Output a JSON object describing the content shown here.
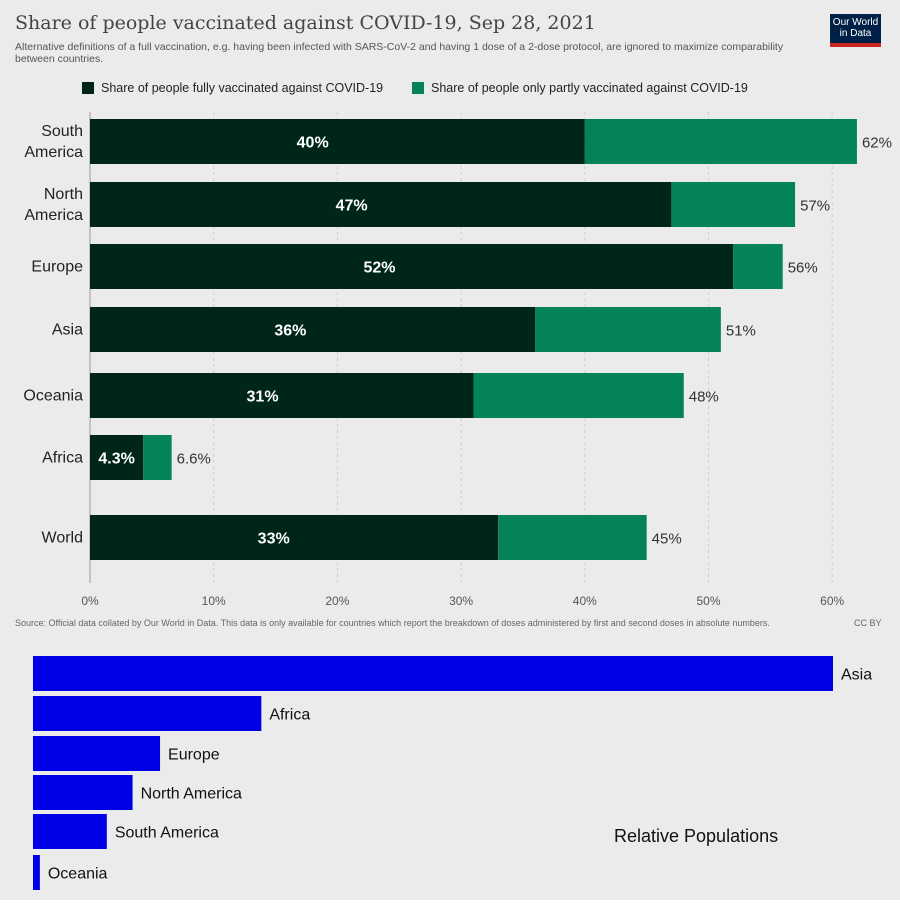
{
  "chart_data": [
    {
      "type": "bar",
      "orientation": "horizontal",
      "stacked": true,
      "title": "Share of people vaccinated against COVID-19, Sep 28, 2021",
      "subtitle": "Alternative definitions of a full vaccination, e.g. having been infected with SARS-CoV-2 and having 1 dose of a 2-dose protocol, are ignored to maximize comparability between countries.",
      "logo": "Our World in Data",
      "categories": [
        "South America",
        "North America",
        "Europe",
        "Asia",
        "Oceania",
        "Africa",
        "World"
      ],
      "category_lines": [
        [
          "South",
          "America"
        ],
        [
          "North",
          "America"
        ],
        [
          "Europe"
        ],
        [
          "Asia"
        ],
        [
          "Oceania"
        ],
        [
          "Africa"
        ],
        [
          "World"
        ]
      ],
      "series": [
        {
          "name": "Share of people fully vaccinated against COVID-19",
          "color": "#00261a",
          "values": [
            40,
            47,
            52,
            36,
            31,
            4.3,
            33
          ],
          "labels": [
            "40%",
            "47%",
            "52%",
            "36%",
            "31%",
            "4.3%",
            "33%"
          ]
        },
        {
          "name": "Share of people only partly vaccinated against COVID-19",
          "color": "#048358",
          "values": [
            22,
            10,
            4,
            15,
            17,
            2.3,
            12
          ]
        }
      ],
      "total_labels": [
        "62%",
        "57%",
        "56%",
        "51%",
        "48%",
        "6.6%",
        "45%"
      ],
      "totals": [
        62,
        57,
        56,
        51,
        48,
        6.6,
        45
      ],
      "xlim": [
        0,
        65
      ],
      "xticks": [
        0,
        10,
        20,
        30,
        40,
        50,
        60
      ],
      "xtick_labels": [
        "0%",
        "10%",
        "20%",
        "30%",
        "40%",
        "50%",
        "60%"
      ],
      "grid": true,
      "legend_position": "top",
      "source": "Source: Official data collated by Our World in Data. This data is only available for countries which report the breakdown of doses administered by first and second doses in absolute numbers.",
      "license": "CC BY"
    },
    {
      "type": "bar",
      "orientation": "horizontal",
      "title": "Relative Populations",
      "categories": [
        "Asia",
        "Africa",
        "Europe",
        "North America",
        "South America",
        "Oceania"
      ],
      "values": [
        4.66,
        1.33,
        0.74,
        0.58,
        0.43,
        0.04
      ],
      "color": "#0000e6"
    }
  ]
}
